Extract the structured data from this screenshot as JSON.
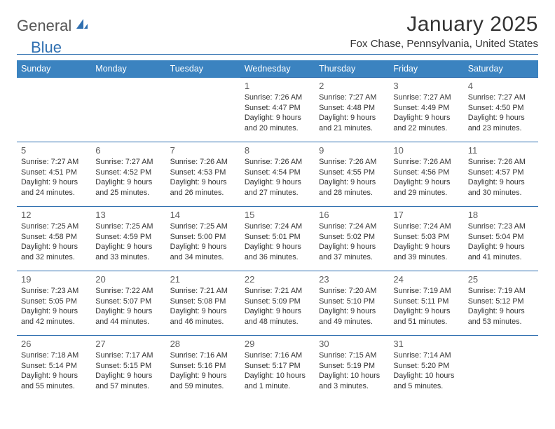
{
  "brand": {
    "part1": "General",
    "part2": "Blue"
  },
  "title": "January 2025",
  "location": "Fox Chase, Pennsylvania, United States",
  "colors": {
    "header_bg": "#3b83c0",
    "rule": "#2f6fb0",
    "text": "#333333",
    "daynum": "#606060",
    "bg": "#ffffff"
  },
  "day_headers": [
    "Sunday",
    "Monday",
    "Tuesday",
    "Wednesday",
    "Thursday",
    "Friday",
    "Saturday"
  ],
  "weeks": [
    [
      null,
      null,
      null,
      {
        "n": "1",
        "sr": "7:26 AM",
        "ss": "4:47 PM",
        "dl": "9 hours and 20 minutes."
      },
      {
        "n": "2",
        "sr": "7:27 AM",
        "ss": "4:48 PM",
        "dl": "9 hours and 21 minutes."
      },
      {
        "n": "3",
        "sr": "7:27 AM",
        "ss": "4:49 PM",
        "dl": "9 hours and 22 minutes."
      },
      {
        "n": "4",
        "sr": "7:27 AM",
        "ss": "4:50 PM",
        "dl": "9 hours and 23 minutes."
      }
    ],
    [
      {
        "n": "5",
        "sr": "7:27 AM",
        "ss": "4:51 PM",
        "dl": "9 hours and 24 minutes."
      },
      {
        "n": "6",
        "sr": "7:27 AM",
        "ss": "4:52 PM",
        "dl": "9 hours and 25 minutes."
      },
      {
        "n": "7",
        "sr": "7:26 AM",
        "ss": "4:53 PM",
        "dl": "9 hours and 26 minutes."
      },
      {
        "n": "8",
        "sr": "7:26 AM",
        "ss": "4:54 PM",
        "dl": "9 hours and 27 minutes."
      },
      {
        "n": "9",
        "sr": "7:26 AM",
        "ss": "4:55 PM",
        "dl": "9 hours and 28 minutes."
      },
      {
        "n": "10",
        "sr": "7:26 AM",
        "ss": "4:56 PM",
        "dl": "9 hours and 29 minutes."
      },
      {
        "n": "11",
        "sr": "7:26 AM",
        "ss": "4:57 PM",
        "dl": "9 hours and 30 minutes."
      }
    ],
    [
      {
        "n": "12",
        "sr": "7:25 AM",
        "ss": "4:58 PM",
        "dl": "9 hours and 32 minutes."
      },
      {
        "n": "13",
        "sr": "7:25 AM",
        "ss": "4:59 PM",
        "dl": "9 hours and 33 minutes."
      },
      {
        "n": "14",
        "sr": "7:25 AM",
        "ss": "5:00 PM",
        "dl": "9 hours and 34 minutes."
      },
      {
        "n": "15",
        "sr": "7:24 AM",
        "ss": "5:01 PM",
        "dl": "9 hours and 36 minutes."
      },
      {
        "n": "16",
        "sr": "7:24 AM",
        "ss": "5:02 PM",
        "dl": "9 hours and 37 minutes."
      },
      {
        "n": "17",
        "sr": "7:24 AM",
        "ss": "5:03 PM",
        "dl": "9 hours and 39 minutes."
      },
      {
        "n": "18",
        "sr": "7:23 AM",
        "ss": "5:04 PM",
        "dl": "9 hours and 41 minutes."
      }
    ],
    [
      {
        "n": "19",
        "sr": "7:23 AM",
        "ss": "5:05 PM",
        "dl": "9 hours and 42 minutes."
      },
      {
        "n": "20",
        "sr": "7:22 AM",
        "ss": "5:07 PM",
        "dl": "9 hours and 44 minutes."
      },
      {
        "n": "21",
        "sr": "7:21 AM",
        "ss": "5:08 PM",
        "dl": "9 hours and 46 minutes."
      },
      {
        "n": "22",
        "sr": "7:21 AM",
        "ss": "5:09 PM",
        "dl": "9 hours and 48 minutes."
      },
      {
        "n": "23",
        "sr": "7:20 AM",
        "ss": "5:10 PM",
        "dl": "9 hours and 49 minutes."
      },
      {
        "n": "24",
        "sr": "7:19 AM",
        "ss": "5:11 PM",
        "dl": "9 hours and 51 minutes."
      },
      {
        "n": "25",
        "sr": "7:19 AM",
        "ss": "5:12 PM",
        "dl": "9 hours and 53 minutes."
      }
    ],
    [
      {
        "n": "26",
        "sr": "7:18 AM",
        "ss": "5:14 PM",
        "dl": "9 hours and 55 minutes."
      },
      {
        "n": "27",
        "sr": "7:17 AM",
        "ss": "5:15 PM",
        "dl": "9 hours and 57 minutes."
      },
      {
        "n": "28",
        "sr": "7:16 AM",
        "ss": "5:16 PM",
        "dl": "9 hours and 59 minutes."
      },
      {
        "n": "29",
        "sr": "7:16 AM",
        "ss": "5:17 PM",
        "dl": "10 hours and 1 minute."
      },
      {
        "n": "30",
        "sr": "7:15 AM",
        "ss": "5:19 PM",
        "dl": "10 hours and 3 minutes."
      },
      {
        "n": "31",
        "sr": "7:14 AM",
        "ss": "5:20 PM",
        "dl": "10 hours and 5 minutes."
      },
      null
    ]
  ]
}
